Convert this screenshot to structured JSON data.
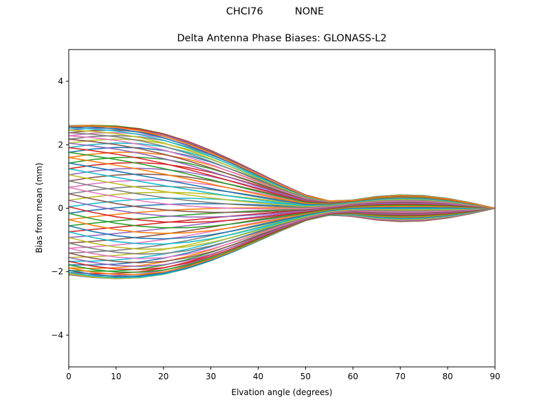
{
  "figure": {
    "suptitle": "CHCI76          NONE",
    "title": "Delta Antenna Phase Biases: GLONASS-L2"
  },
  "chart_data": {
    "type": "line",
    "title": "Delta Antenna Phase Biases: GLONASS-L2",
    "suptitle": "CHCI76          NONE",
    "xlabel": "Elvation angle (degrees)",
    "ylabel": "Bias from mean (mm)",
    "xlim": [
      0,
      90
    ],
    "ylim": [
      -5,
      5
    ],
    "xticks": [
      0,
      10,
      20,
      30,
      40,
      50,
      60,
      70,
      80,
      90
    ],
    "yticks": [
      -4,
      -2,
      0,
      2,
      4
    ],
    "grid": false,
    "legend": "none",
    "x": [
      0,
      5,
      10,
      15,
      20,
      25,
      30,
      35,
      40,
      45,
      50,
      55,
      60,
      65,
      70,
      75,
      80,
      85,
      90
    ],
    "colors": [
      "#1f77b4",
      "#ff7f0e",
      "#2ca02c",
      "#d62728",
      "#9467bd",
      "#8c564b",
      "#e377c2",
      "#7f7f7f",
      "#bcbd22",
      "#17becf"
    ],
    "series_count": 72,
    "series_note": "Family of ~72 curves (one per azimuth); values generated from phase-rotated profile, all converge to 0 at 90 deg. Start values range approx -2.1 to 2.6 mm at 0 deg; mid-range cross near 0 at 50-60 deg; envelope approx -0.45 to 0.4 mm at 70 deg.",
    "series_params": {
      "a0_amp": 2.35,
      "a0_offset": 0.25,
      "peak_amp": 1.3,
      "tail_amp": 0.42
    }
  }
}
